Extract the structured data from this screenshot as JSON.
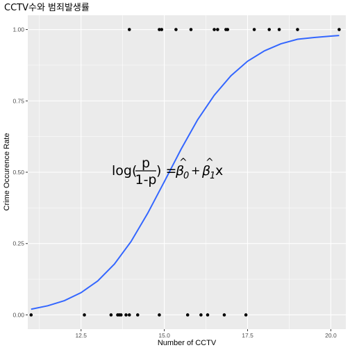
{
  "chart_data": {
    "type": "scatter",
    "title": "CCTV수와 범죄발생률",
    "xlabel": "Number of CCTV",
    "ylabel": "Crime Occurence Rate",
    "xlim": [
      10.9,
      20.45
    ],
    "ylim": [
      -0.05,
      1.05
    ],
    "x_ticks": [
      12.5,
      15.0,
      17.5,
      20.0
    ],
    "x_tick_labels": [
      "12.5",
      "15.0",
      "17.5",
      "20.0"
    ],
    "y_ticks": [
      0.0,
      0.25,
      0.5,
      0.75,
      1.0
    ],
    "y_tick_labels": [
      "0.00",
      "0.25",
      "0.50",
      "0.75",
      "1.00"
    ],
    "grid": true,
    "points_y1": [
      13.95,
      14.85,
      14.92,
      15.35,
      15.8,
      16.5,
      16.6,
      16.85,
      16.9,
      17.7,
      18.15,
      18.45,
      19.0,
      20.25
    ],
    "points_y0": [
      11.0,
      12.6,
      13.4,
      13.6,
      13.65,
      13.7,
      13.85,
      13.95,
      14.2,
      14.85,
      15.7,
      16.1,
      16.3,
      16.8,
      17.45
    ],
    "fit_curve": {
      "type": "logistic",
      "x": [
        11.0,
        11.5,
        12.0,
        12.5,
        13.0,
        13.5,
        14.0,
        14.5,
        15.0,
        15.5,
        16.0,
        16.5,
        17.0,
        17.5,
        18.0,
        18.5,
        19.0,
        19.5,
        20.0,
        20.25
      ],
      "y": [
        0.02,
        0.032,
        0.05,
        0.078,
        0.119,
        0.178,
        0.257,
        0.356,
        0.467,
        0.58,
        0.684,
        0.77,
        0.838,
        0.889,
        0.925,
        0.95,
        0.966,
        0.972,
        0.977,
        0.979
      ],
      "color": "#3366FF"
    },
    "colors": {
      "panel": "#EBEBEB",
      "grid": "#FFFFFF",
      "point": "#000000",
      "curve": "#3366FF"
    },
    "annotation": {
      "x": 15.6,
      "y": 0.5,
      "lhs_log": "log(",
      "frac_num": "p",
      "frac_den": "1-p",
      "rhs_close": ") =",
      "beta0": "β",
      "beta0_sub": "0",
      "hat": "^",
      "plus": "+",
      "beta1": "β",
      "beta1_sub": "1",
      "var": "x"
    }
  }
}
